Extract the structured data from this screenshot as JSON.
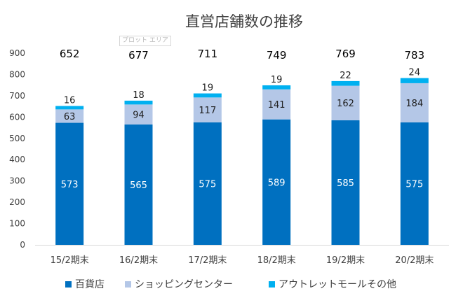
{
  "chart_data": {
    "type": "bar",
    "stacked": true,
    "title": "直営店舗数の推移",
    "plot_area_label": "プロット エリア",
    "categories": [
      "15/2期末",
      "16/2期末",
      "17/2期末",
      "18/2期末",
      "19/2期末",
      "20/2期末"
    ],
    "series": [
      {
        "name": "百貨店",
        "color": "#0070c0",
        "values": [
          573,
          565,
          575,
          589,
          585,
          575
        ]
      },
      {
        "name": "ショッピングセンター",
        "color": "#b4c7e7",
        "values": [
          63,
          94,
          117,
          141,
          162,
          184
        ]
      },
      {
        "name": "アウトレットモールその他",
        "color": "#00b0f0",
        "values": [
          16,
          18,
          19,
          19,
          22,
          24
        ]
      }
    ],
    "totals": [
      652,
      677,
      711,
      749,
      769,
      783
    ],
    "yticks": [
      0,
      100,
      200,
      300,
      400,
      500,
      600,
      700,
      800,
      900
    ],
    "ylim": [
      0,
      900
    ],
    "grid": false,
    "legend_position": "bottom"
  }
}
